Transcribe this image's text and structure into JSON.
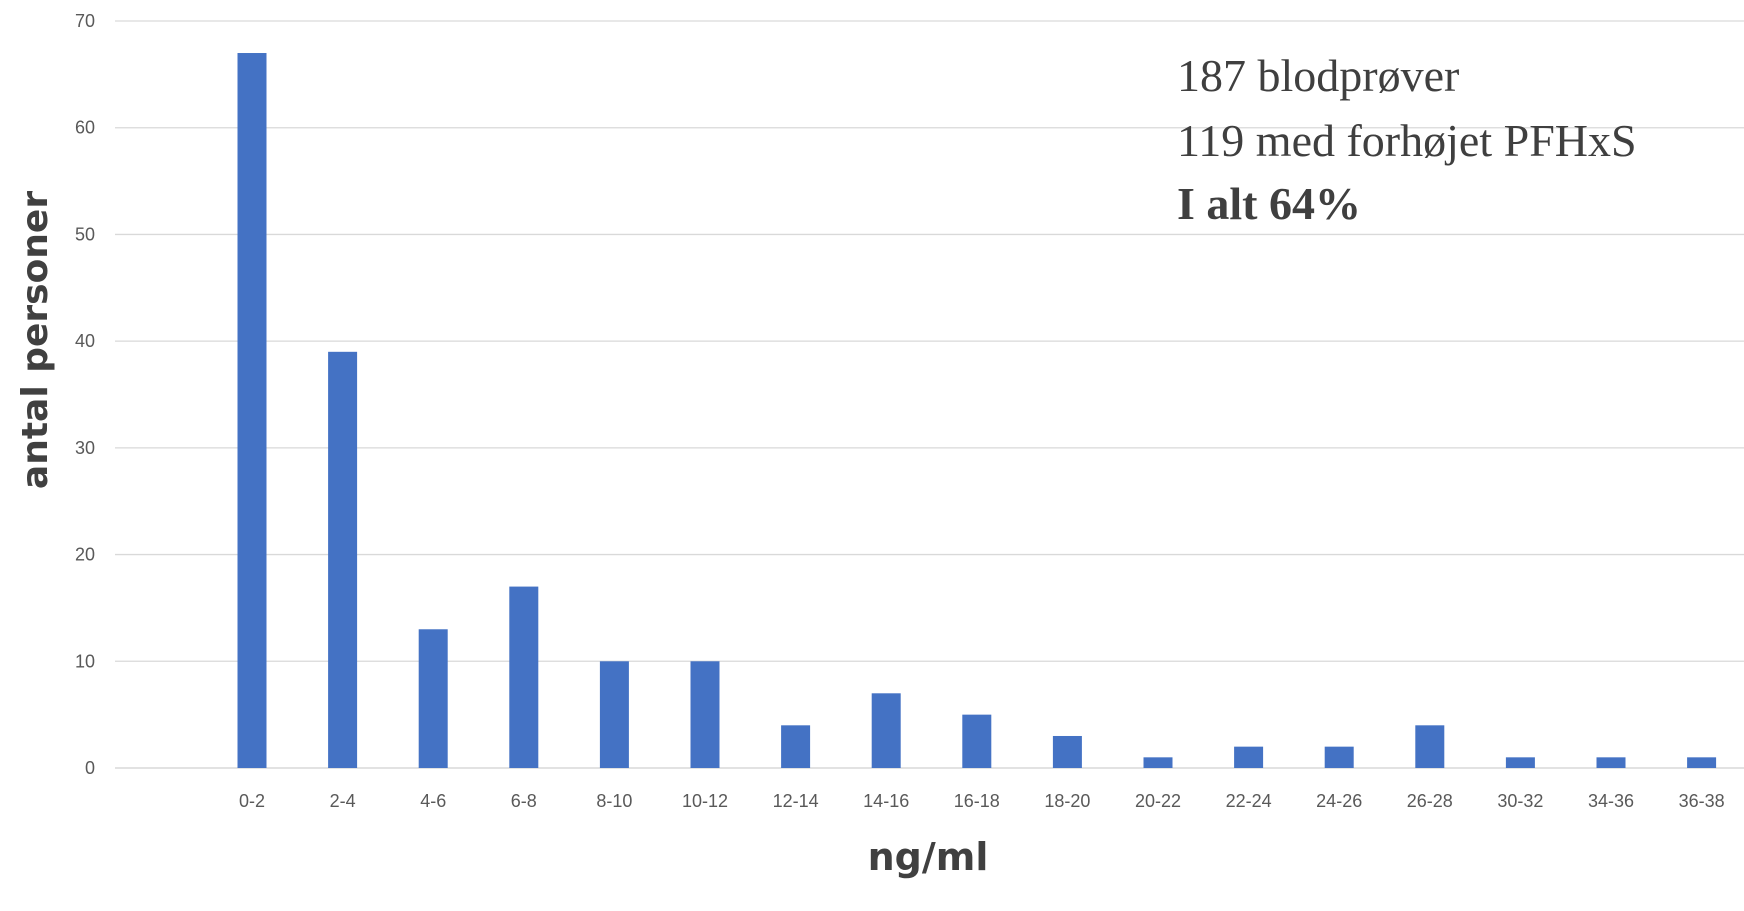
{
  "chart_data": {
    "type": "bar",
    "categories": [
      "0-2",
      "2-4",
      "4-6",
      "6-8",
      "8-10",
      "10-12",
      "12-14",
      "14-16",
      "16-18",
      "18-20",
      "20-22",
      "22-24",
      "24-26",
      "26-28",
      "30-32",
      "34-36",
      "36-38"
    ],
    "series": [
      {
        "values": [
          67,
          39,
          13,
          17,
          10,
          10,
          4,
          7,
          5,
          3,
          1,
          2,
          2,
          4,
          1,
          1,
          1
        ]
      }
    ],
    "xlabel": "ng/ml",
    "ylabel": "antal personer",
    "ylim": [
      0,
      70
    ],
    "yticks": [
      0,
      10,
      20,
      30,
      40,
      50,
      60,
      70
    ],
    "grid": true,
    "bar_color": "#4472c4",
    "annotations": [
      {
        "text": "187 blodprøver",
        "bold": false
      },
      {
        "text": "119 med forhøjet PFHxS",
        "bold": false
      },
      {
        "text": "I alt 64%",
        "bold": true
      }
    ]
  }
}
